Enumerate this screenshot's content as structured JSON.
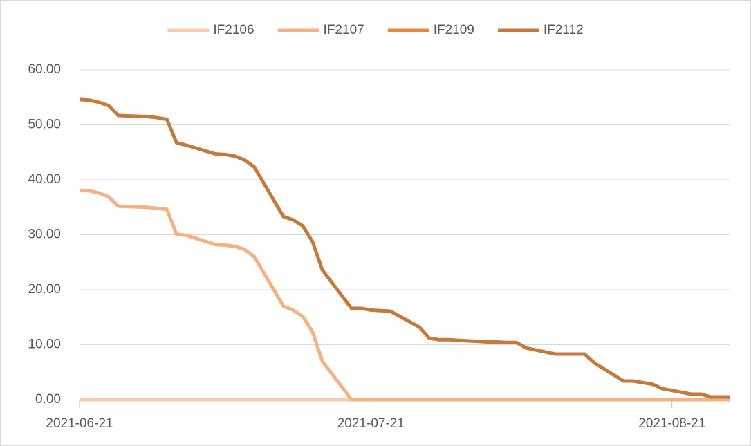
{
  "chart_data": {
    "type": "line",
    "x": [
      "2021-06-21",
      "2021-06-22",
      "2021-06-23",
      "2021-06-24",
      "2021-06-25",
      "2021-06-28",
      "2021-06-29",
      "2021-06-30",
      "2021-07-01",
      "2021-07-02",
      "2021-07-05",
      "2021-07-06",
      "2021-07-07",
      "2021-07-08",
      "2021-07-09",
      "2021-07-12",
      "2021-07-13",
      "2021-07-14",
      "2021-07-15",
      "2021-07-16",
      "2021-07-19",
      "2021-07-20",
      "2021-07-21",
      "2021-07-22",
      "2021-07-23",
      "2021-07-26",
      "2021-07-27",
      "2021-07-28",
      "2021-07-29",
      "2021-07-30",
      "2021-08-02",
      "2021-08-03",
      "2021-08-04",
      "2021-08-05",
      "2021-08-06",
      "2021-08-09",
      "2021-08-10",
      "2021-08-11",
      "2021-08-12",
      "2021-08-13",
      "2021-08-16",
      "2021-08-17",
      "2021-08-18",
      "2021-08-19",
      "2021-08-20",
      "2021-08-23",
      "2021-08-24",
      "2021-08-25",
      "2021-08-26",
      "2021-08-27"
    ],
    "series": [
      {
        "name": "IF2106",
        "color": "#f8cbad",
        "values": [
          0,
          0,
          0,
          0,
          0,
          0,
          0,
          0,
          0,
          0,
          0,
          0,
          0,
          0,
          0,
          0,
          0,
          0,
          0,
          0,
          0,
          0,
          0,
          0,
          0,
          0,
          0,
          0,
          0,
          0,
          0,
          0,
          0,
          0,
          0,
          0,
          0,
          0,
          0,
          0,
          0,
          0,
          0,
          0,
          0,
          0,
          0,
          0,
          0,
          0
        ]
      },
      {
        "name": "IF2107",
        "color": "#f4b183",
        "values": [
          38.1,
          38.0,
          37.6,
          36.9,
          35.2,
          35.0,
          34.8,
          34.6,
          30.1,
          29.9,
          28.2,
          28.1,
          27.9,
          27.3,
          26.0,
          17.0,
          16.3,
          15.1,
          12.3,
          7.0,
          0,
          0,
          0,
          0,
          0,
          0,
          0,
          0,
          0,
          0,
          0,
          0,
          0,
          0,
          0,
          0,
          0,
          0,
          0,
          0,
          0,
          0,
          0,
          0,
          0,
          0,
          0,
          0,
          0,
          0
        ]
      },
      {
        "name": "IF2109",
        "color": "#e8883a",
        "values": [
          null,
          null,
          null,
          null,
          null,
          null,
          null,
          null,
          null,
          null,
          null,
          null,
          null,
          null,
          null,
          null,
          null,
          null,
          null,
          null,
          null,
          null,
          null,
          null,
          null,
          null,
          null,
          null,
          null,
          null,
          null,
          null,
          null,
          null,
          null,
          null,
          null,
          null,
          null,
          null,
          null,
          null,
          null,
          null,
          null,
          null,
          null,
          null,
          null,
          null
        ]
      },
      {
        "name": "IF2112",
        "color": "#c47a3c",
        "values": [
          54.6,
          54.5,
          54.1,
          53.5,
          51.7,
          51.5,
          51.3,
          51.0,
          46.7,
          46.3,
          44.7,
          44.6,
          44.3,
          43.6,
          42.3,
          33.3,
          32.7,
          31.6,
          28.7,
          23.6,
          16.6,
          16.6,
          16.3,
          16.2,
          16.1,
          13.2,
          11.2,
          10.9,
          10.9,
          10.8,
          10.5,
          10.5,
          10.4,
          10.4,
          9.4,
          8.3,
          8.3,
          8.3,
          8.3,
          6.7,
          3.4,
          3.4,
          3.1,
          2.8,
          2.0,
          1.0,
          1.0,
          0.5,
          0.5,
          0.5
        ]
      }
    ],
    "xlim": [
      "2021-06-21",
      "2021-08-27"
    ],
    "xticks": [
      "2021-06-21",
      "2021-07-21",
      "2021-08-21"
    ],
    "ylim": [
      0,
      60
    ],
    "yticks": [
      {
        "value": 0,
        "label": "0.00"
      },
      {
        "value": 10,
        "label": "10.00"
      },
      {
        "value": 20,
        "label": "20.00"
      },
      {
        "value": 30,
        "label": "30.00"
      },
      {
        "value": 40,
        "label": "40.00"
      },
      {
        "value": 50,
        "label": "50.00"
      },
      {
        "value": 60,
        "label": "60.00"
      }
    ],
    "grid": true,
    "legend": "top"
  }
}
